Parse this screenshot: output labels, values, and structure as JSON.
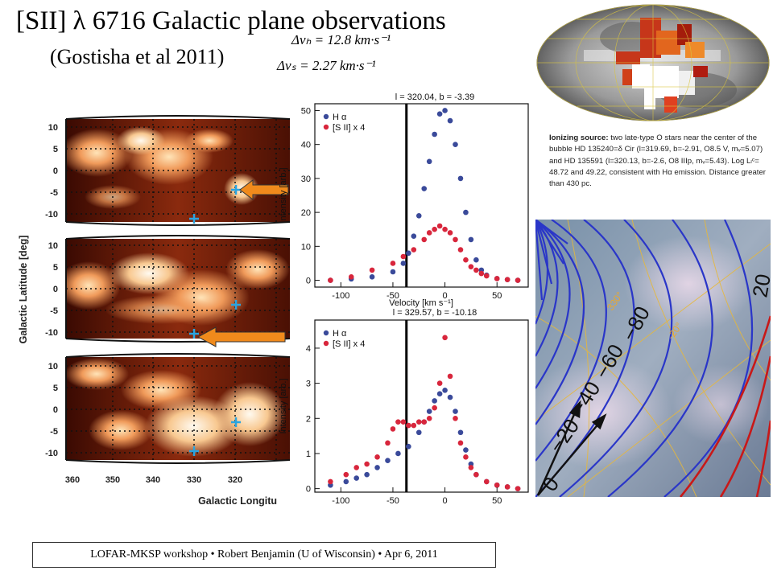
{
  "slide": {
    "title": "[SII] λ 6716 Galactic plane observations",
    "subtitle": "(Gostisha et al 2011)",
    "eq_h": "Δvₕ = 12.8 km·s⁻¹",
    "eq_s": "Δvₛ = 2.27 km·s⁻¹",
    "footer": "LOFAR-MKSP workshop • Robert Benjamin (U of Wisconsin) • Apr 6, 2011"
  },
  "caption": {
    "bold": "Ionizing source:",
    "text": " two late-type O stars near the center of the bubble HD 135240=δ Cir (l=319.69, b=-2.91, O8.5 V, mᵥ=5.07) and HD 135591 (l=320.13, b=-2.6, O8 IIIp, mᵥ=5.43). Log Lₗᶜ= 48.72 and 49.22, consistent with Hα emission. Distance greater than 430 pc."
  },
  "maps": {
    "ylabel": "Galactic Latitude [deg]",
    "xlabel": "Galactic Longitu",
    "yticks": [
      "10",
      "5",
      "0",
      "-5",
      "-10"
    ],
    "xticks": [
      "360",
      "350",
      "340",
      "330",
      "320"
    ]
  },
  "contour": {
    "labels": [
      "−80",
      "−60",
      "−40",
      "−20",
      "0",
      "20"
    ],
    "grid_labels": [
      "330°",
      "-20°"
    ]
  },
  "colors": {
    "halpha": "#3a4a9a",
    "sii": "#d8263c",
    "arrow": "#f08a1c"
  },
  "chart_data": [
    {
      "type": "scatter",
      "title": "l = 320.04,    b = -3.39",
      "xlabel": "Velocity [km s⁻¹]",
      "ylabel": "Intensity [arb.]",
      "xlim": [
        -125,
        80
      ],
      "ylim": [
        -2,
        52
      ],
      "xticks": [
        -100,
        -50,
        0,
        50
      ],
      "yticks": [
        0,
        10,
        20,
        30,
        40,
        50
      ],
      "vline": -37,
      "series": [
        {
          "name": "H α",
          "color": "#3a4a9a",
          "marker": "circle",
          "x": [
            -110,
            -90,
            -70,
            -50,
            -40,
            -35,
            -30,
            -25,
            -20,
            -15,
            -10,
            -5,
            0,
            5,
            10,
            15,
            20,
            25,
            30,
            35,
            40,
            50,
            60,
            70
          ],
          "y": [
            0,
            0.4,
            1,
            2.5,
            5,
            8,
            13,
            19,
            27,
            35,
            43,
            49,
            50,
            47,
            40,
            30,
            20,
            12,
            6,
            3,
            1.5,
            0.5,
            0.2,
            0
          ]
        },
        {
          "name": "[S II] x 4",
          "color": "#d8263c",
          "marker": "circle",
          "x": [
            -110,
            -90,
            -70,
            -50,
            -40,
            -30,
            -20,
            -15,
            -10,
            -5,
            0,
            5,
            10,
            15,
            20,
            25,
            30,
            35,
            40,
            50,
            60,
            70
          ],
          "y": [
            0,
            1,
            3,
            5,
            7,
            9,
            12,
            14,
            15,
            16,
            15,
            14,
            12,
            9,
            6,
            4,
            3,
            2,
            1.3,
            0.5,
            0.2,
            0
          ]
        }
      ]
    },
    {
      "type": "scatter",
      "title": "l = 329.57,    b = -10.18",
      "xlabel": "",
      "ylabel": "Intensity [arb.]",
      "xlim": [
        -125,
        80
      ],
      "ylim": [
        -0.1,
        4.8
      ],
      "xticks": [
        -100,
        -50,
        0,
        50
      ],
      "yticks": [
        0,
        1,
        2,
        3,
        4
      ],
      "vline": -37,
      "series": [
        {
          "name": "H α",
          "color": "#3a4a9a",
          "marker": "circle",
          "x": [
            -110,
            -95,
            -85,
            -75,
            -65,
            -55,
            -45,
            -35,
            -25,
            -20,
            -15,
            -10,
            -5,
            0,
            5,
            10,
            15,
            20,
            25,
            30,
            40,
            50,
            60,
            70
          ],
          "y": [
            0.1,
            0.2,
            0.3,
            0.4,
            0.6,
            0.8,
            1.0,
            1.2,
            1.6,
            1.9,
            2.2,
            2.5,
            2.7,
            2.8,
            2.6,
            2.2,
            1.6,
            1.1,
            0.7,
            0.4,
            0.2,
            0.1,
            0.05,
            0
          ]
        },
        {
          "name": "[S II] x 4",
          "color": "#d8263c",
          "marker": "circle",
          "x": [
            -110,
            -95,
            -85,
            -75,
            -65,
            -55,
            -50,
            -45,
            -40,
            -35,
            -30,
            -25,
            -20,
            -15,
            -10,
            -5,
            0,
            5,
            10,
            15,
            20,
            25,
            30,
            40,
            50,
            60,
            70
          ],
          "y": [
            0.2,
            0.4,
            0.6,
            0.7,
            0.9,
            1.3,
            1.7,
            1.9,
            1.9,
            1.8,
            1.8,
            1.9,
            1.9,
            2.0,
            2.3,
            3.0,
            4.3,
            3.2,
            2.0,
            1.3,
            0.9,
            0.6,
            0.4,
            0.2,
            0.1,
            0.05,
            0
          ]
        }
      ]
    }
  ]
}
